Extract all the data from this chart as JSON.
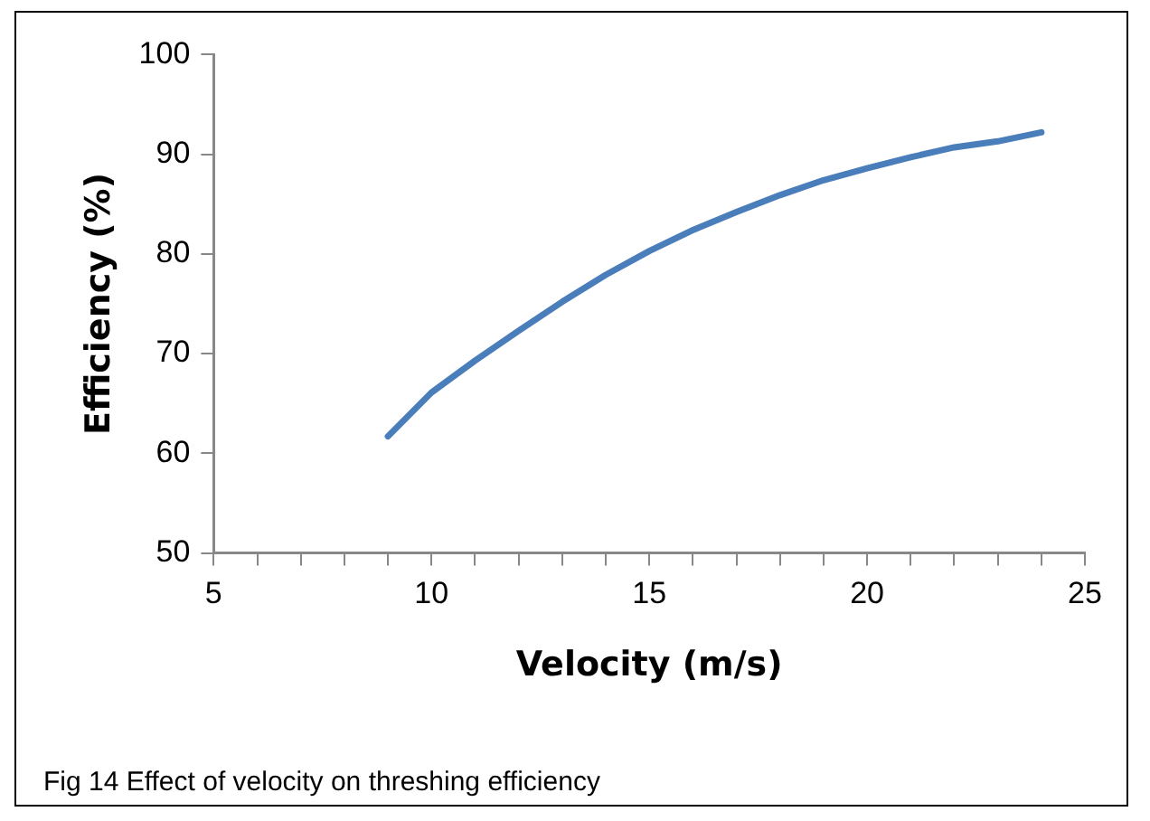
{
  "chart_data": {
    "type": "line",
    "xlabel": "Velocity (m/s)",
    "ylabel": "Efficiency (%)",
    "x": [
      9,
      10,
      11,
      12,
      13,
      14,
      15,
      16,
      17,
      18,
      19,
      20,
      21,
      22,
      23,
      24
    ],
    "series": [
      {
        "color": "#4a7ebb",
        "values": [
          61.7,
          66.1,
          69.3,
          72.3,
          75.2,
          77.9,
          80.3,
          82.4,
          84.2,
          85.9,
          87.4,
          88.6,
          89.7,
          90.7,
          91.3,
          92.2
        ]
      }
    ],
    "xlim": [
      5,
      25
    ],
    "xticks": [
      5,
      {
        "value": 6,
        "label": null
      },
      {
        "value": 7,
        "label": null
      },
      {
        "value": 8,
        "label": null
      },
      {
        "value": 9,
        "label": null
      },
      10,
      {
        "value": 11,
        "label": null
      },
      {
        "value": 12,
        "label": null
      },
      {
        "value": 13,
        "label": null
      },
      {
        "value": 14,
        "label": null
      },
      15,
      {
        "value": 16,
        "label": null
      },
      {
        "value": 17,
        "label": null
      },
      {
        "value": 18,
        "label": null
      },
      {
        "value": 19,
        "label": null
      },
      20,
      {
        "value": 21,
        "label": null
      },
      {
        "value": 22,
        "label": null
      },
      {
        "value": 23,
        "label": null
      },
      {
        "value": 24,
        "label": null
      },
      25
    ],
    "ylim": [
      50,
      100
    ],
    "yticks": [
      50,
      60,
      70,
      80,
      90,
      100
    ],
    "grid": false,
    "legend": false,
    "marker": "none",
    "line_style": "solid",
    "annotations": [
      "Fig 14 Effect of velocity on threshing efficiency"
    ]
  }
}
